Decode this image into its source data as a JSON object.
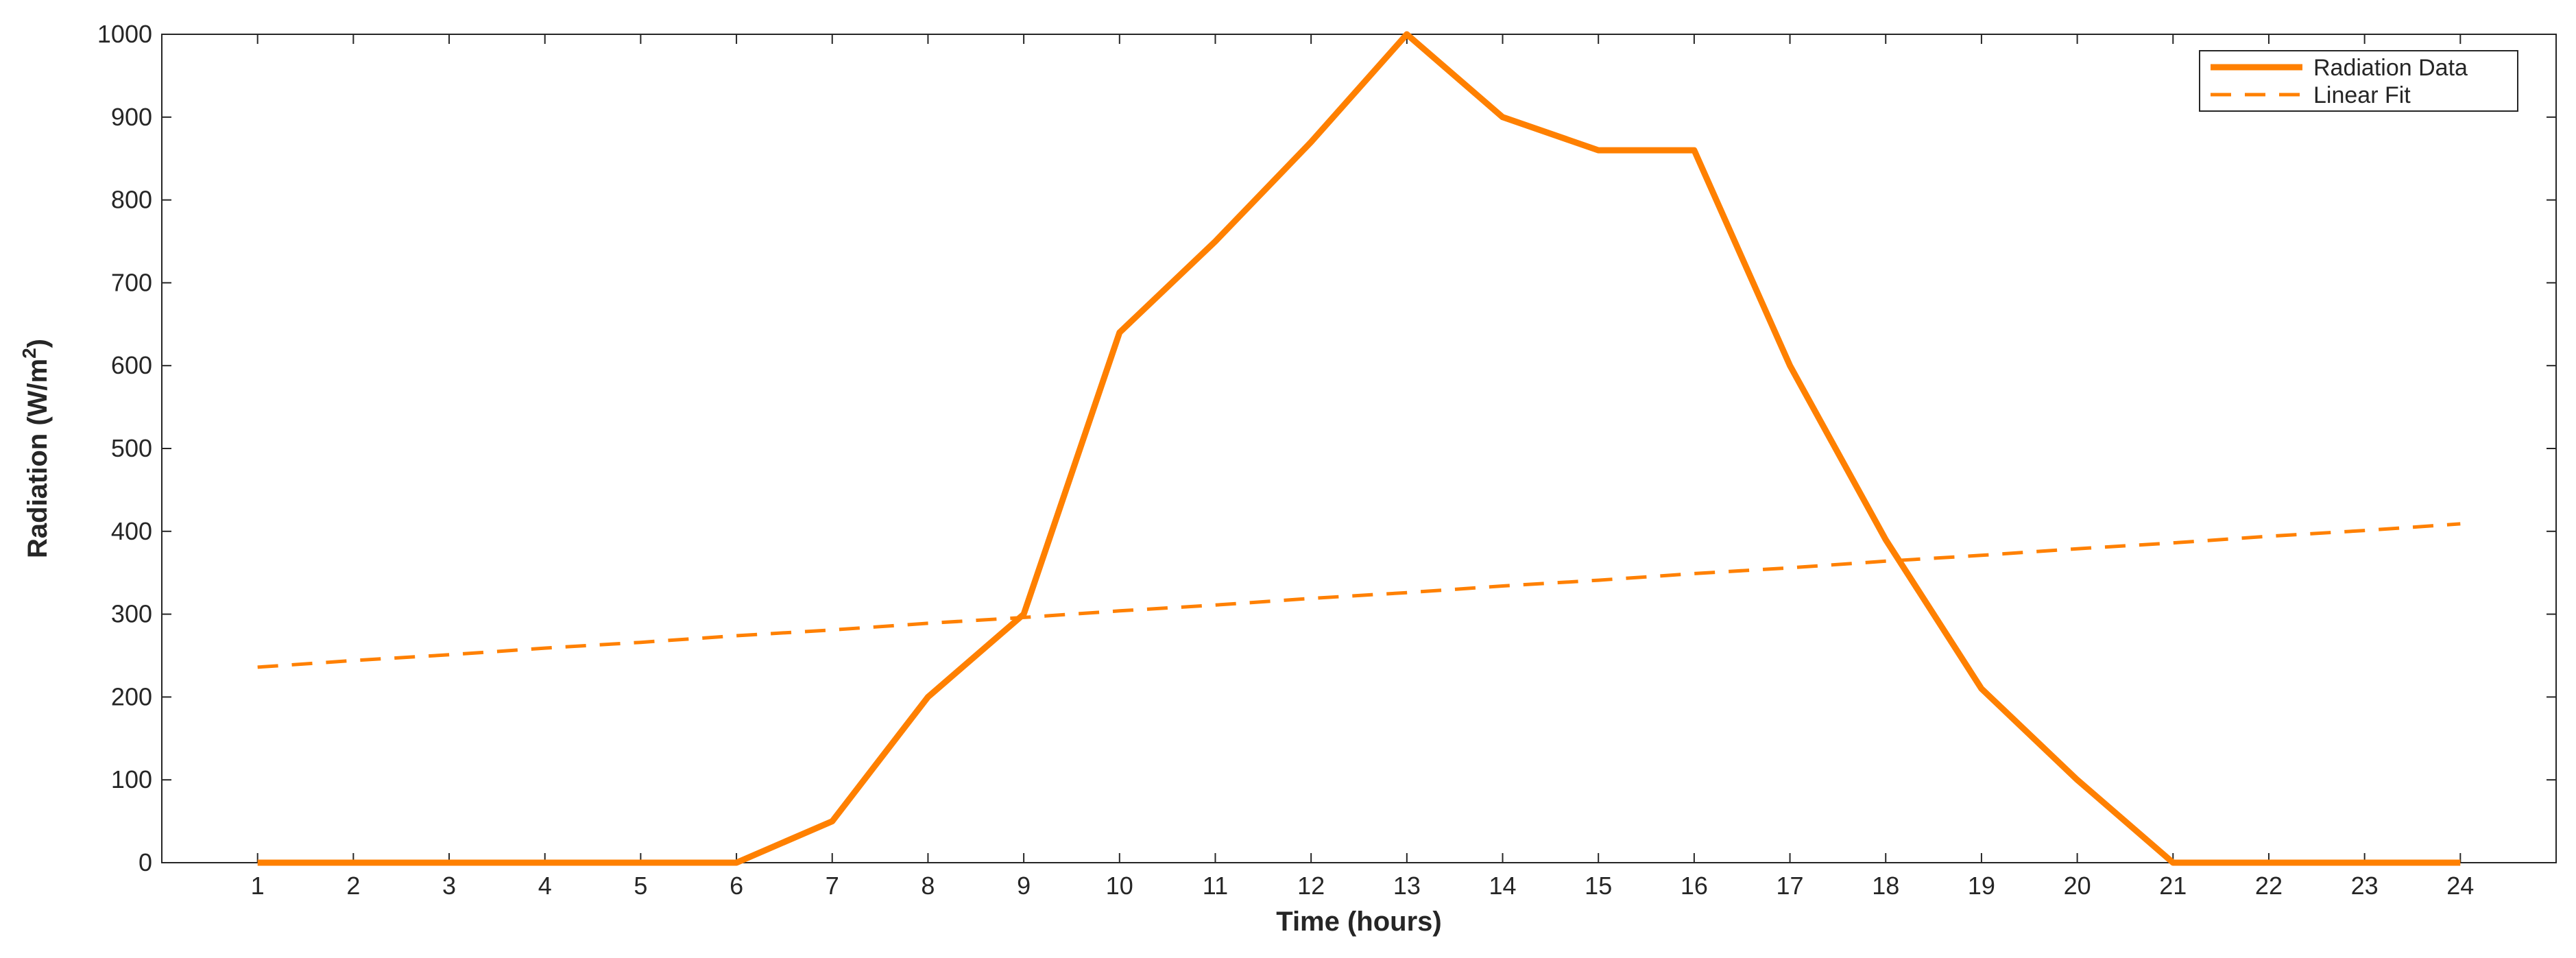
{
  "colors": {
    "series": "#ff8000",
    "axes": "#262626",
    "background": "#ffffff"
  },
  "chart_data": {
    "type": "line",
    "title": "",
    "xlabel": "Time (hours)",
    "ylabel": "Radiation (W/m",
    "ylabel_superscript": "2",
    "ylabel_suffix": ")",
    "xlim": [
      0,
      25
    ],
    "ylim": [
      0,
      1000
    ],
    "xticks": [
      1,
      2,
      3,
      4,
      5,
      6,
      7,
      8,
      9,
      10,
      11,
      12,
      13,
      14,
      15,
      16,
      17,
      18,
      19,
      20,
      21,
      22,
      23,
      24
    ],
    "yticks": [
      0,
      100,
      200,
      300,
      400,
      500,
      600,
      700,
      800,
      900,
      1000
    ],
    "grid": false,
    "legend_position": "top-right",
    "x": [
      1,
      2,
      3,
      4,
      5,
      6,
      7,
      8,
      9,
      10,
      11,
      12,
      13,
      14,
      15,
      16,
      17,
      18,
      19,
      20,
      21,
      22,
      23,
      24
    ],
    "series": [
      {
        "name": "Radiation Data",
        "style": "solid",
        "values": [
          0,
          0,
          0,
          0,
          0,
          0,
          50,
          200,
          300,
          640,
          750,
          870,
          1000,
          900,
          860,
          860,
          600,
          390,
          210,
          100,
          0,
          0,
          0,
          0
        ]
      },
      {
        "name": "Linear Fit",
        "style": "dashed",
        "values": [
          236,
          244,
          251,
          259,
          266,
          274,
          281,
          289,
          296,
          304,
          311,
          319,
          326,
          334,
          341,
          349,
          356,
          364,
          371,
          379,
          386,
          394,
          401,
          409
        ]
      }
    ]
  }
}
